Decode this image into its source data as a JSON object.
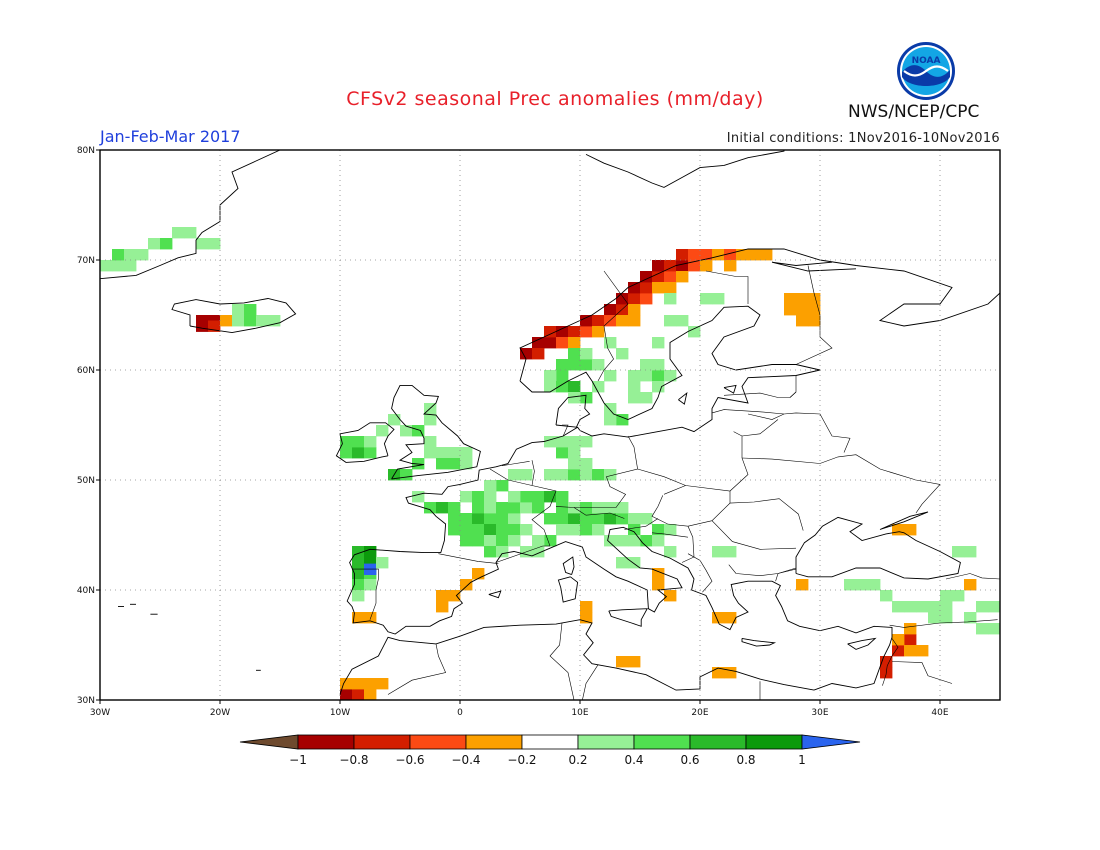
{
  "header": {
    "title": "CFSv2 seasonal Prec anomalies (mm/day)",
    "period": "Jan-Feb-Mar 2017",
    "initial_conditions": "Initial conditions: 1Nov2016-10Nov2016",
    "organization": "NWS/NCEP/CPC",
    "logo_text": "NOAA"
  },
  "map": {
    "lon_range": [
      -30,
      45
    ],
    "lat_range": [
      30,
      80
    ],
    "lon_ticks": [
      {
        "value": -30,
        "label": "30W"
      },
      {
        "value": -20,
        "label": "20W"
      },
      {
        "value": -10,
        "label": "10W"
      },
      {
        "value": 0,
        "label": "0"
      },
      {
        "value": 10,
        "label": "10E"
      },
      {
        "value": 20,
        "label": "20E"
      },
      {
        "value": 30,
        "label": "30E"
      },
      {
        "value": 40,
        "label": "40E"
      }
    ],
    "lat_ticks": [
      {
        "value": 30,
        "label": "30N"
      },
      {
        "value": 40,
        "label": "40N"
      },
      {
        "value": 50,
        "label": "50N"
      },
      {
        "value": 60,
        "label": "60N"
      },
      {
        "value": 70,
        "label": "70N"
      },
      {
        "value": 80,
        "label": "80N"
      }
    ],
    "grid": "dotted",
    "anomaly_regions": [
      {
        "region": "Norway coast",
        "category": "-0.8 to -1",
        "lon": [
          4,
          18
        ],
        "lat": [
          61,
          70
        ]
      },
      {
        "region": "Northern Norway",
        "category": "-0.4 to -0.6",
        "lon": [
          18,
          26
        ],
        "lat": [
          69,
          71
        ]
      },
      {
        "region": "Kola / NW Russia",
        "category": "-0.2 to -0.4",
        "lon": [
          27,
          31
        ],
        "lat": [
          64,
          67
        ]
      },
      {
        "region": "SW Iceland",
        "category": "-0.8 to -1",
        "lon": [
          -22,
          -19
        ],
        "lat": [
          63.5,
          65
        ]
      },
      {
        "region": "Iceland east",
        "category": "0.2 to 0.6",
        "lon": [
          -19,
          -14
        ],
        "lat": [
          64,
          65.5
        ]
      },
      {
        "region": "Greenland SE",
        "category": "0.2 to 0.4",
        "lon": [
          -30,
          -21
        ],
        "lat": [
          68,
          72
        ]
      },
      {
        "region": "Ireland / UK",
        "category": "0.2 to 0.8",
        "lon": [
          -10,
          0
        ],
        "lat": [
          50,
          56
        ]
      },
      {
        "region": "France / Central Europe",
        "category": "0.2 to 0.6",
        "lon": [
          -4,
          18
        ],
        "lat": [
          43,
          55
        ]
      },
      {
        "region": "Southern Scandinavia",
        "category": "0.2 to 0.6",
        "lon": [
          7,
          16
        ],
        "lat": [
          55,
          63
        ]
      },
      {
        "region": "Finland interior",
        "category": "0.2 to 0.4",
        "lon": [
          16,
          22
        ],
        "lat": [
          60,
          67
        ]
      },
      {
        "region": "NW Iberia",
        "category": "0.4 to 1",
        "lon": [
          -9,
          -7
        ],
        "lat": [
          39,
          43
        ]
      },
      {
        "region": "SE Spain",
        "category": "-0.2 to -0.4",
        "lon": [
          -2,
          1
        ],
        "lat": [
          37,
          39
        ]
      },
      {
        "region": "Morocco / Canaries edge",
        "category": "-0.2 to -0.8",
        "lon": [
          -10,
          -6
        ],
        "lat": [
          30,
          32
        ]
      },
      {
        "region": "Sardinia",
        "category": "-0.2 to -0.4",
        "lon": [
          10,
          11
        ],
        "lat": [
          37.5,
          39
        ]
      },
      {
        "region": "Southern Italy",
        "category": "-0.2 to -0.4",
        "lon": [
          16,
          18
        ],
        "lat": [
          39,
          41
        ]
      },
      {
        "region": "Turkey south",
        "category": "0.2 to 0.4",
        "lon": [
          32,
          45
        ],
        "lat": [
          35.5,
          39
        ]
      },
      {
        "region": "Levant",
        "category": "-0.4 to -0.8",
        "lon": [
          35,
          38
        ],
        "lat": [
          32,
          35
        ]
      }
    ]
  },
  "colorbar": {
    "colors": [
      "#6e4a2e",
      "#a60000",
      "#d31e00",
      "#fc4a14",
      "#fca000",
      "#ffffff",
      "#96f096",
      "#50e050",
      "#2aba2a",
      "#0c9a0c",
      "#2a64ee"
    ],
    "tick_labels": [
      "-1",
      "-0.8",
      "-0.6",
      "-0.4",
      "-0.2",
      "0.2",
      "0.4",
      "0.6",
      "0.8",
      "1"
    ]
  }
}
